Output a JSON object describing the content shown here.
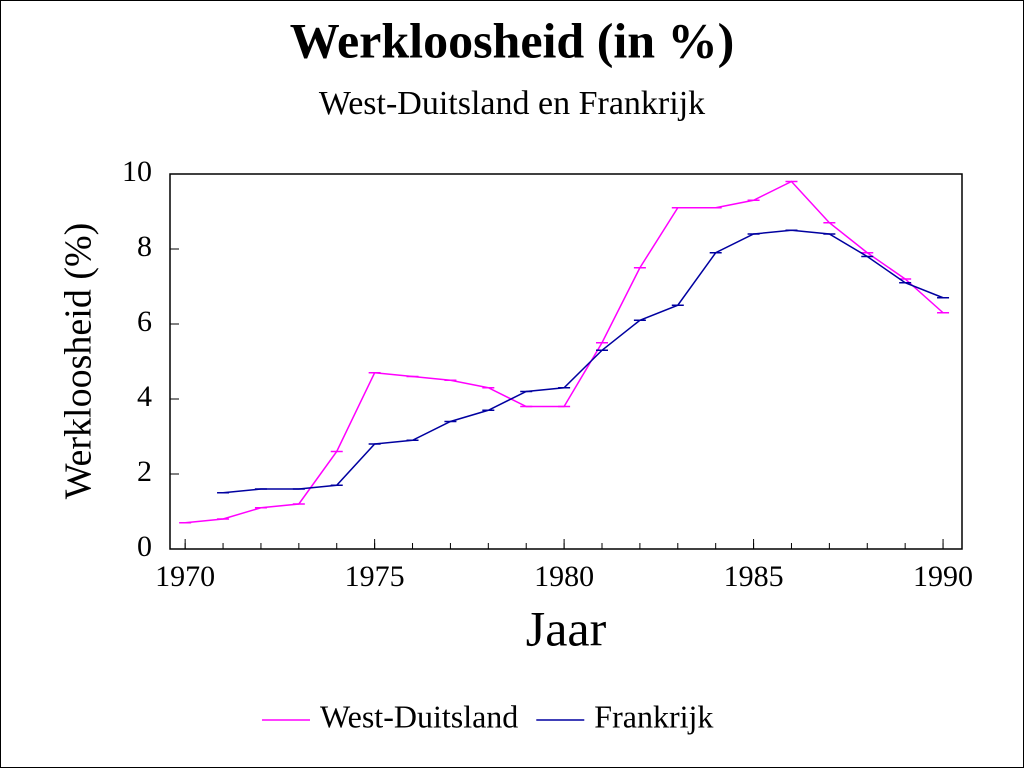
{
  "chart_data": {
    "type": "line",
    "title": "Werkloosheid (in %)",
    "subtitle": "West-Duitsland en Frankrijk",
    "x_label": "Jaar",
    "y_label": "Werkloosheid (%)",
    "x": [
      1970,
      1971,
      1972,
      1973,
      1974,
      1975,
      1976,
      1977,
      1978,
      1979,
      1980,
      1981,
      1982,
      1983,
      1984,
      1985,
      1986,
      1987,
      1988,
      1989,
      1990
    ],
    "series": [
      {
        "name": "West-Duitsland",
        "color": "#ff00ff",
        "values": [
          0.7,
          0.8,
          1.1,
          1.2,
          2.6,
          4.7,
          4.6,
          4.5,
          4.3,
          3.8,
          3.8,
          5.5,
          7.5,
          9.1,
          9.1,
          9.3,
          9.8,
          8.7,
          7.9,
          7.2,
          6.3
        ]
      },
      {
        "name": "Frankrijk",
        "color": "#0000a0",
        "values": [
          null,
          1.5,
          1.6,
          1.6,
          1.7,
          2.8,
          2.9,
          3.4,
          3.7,
          4.2,
          4.3,
          5.3,
          6.1,
          6.5,
          7.9,
          8.4,
          8.5,
          8.4,
          7.8,
          7.1,
          6.7
        ]
      }
    ],
    "xlim": [
      1969.6,
      1990.5
    ],
    "xticks": [
      1970,
      1975,
      1980,
      1985,
      1990
    ],
    "ylim": [
      0,
      10
    ],
    "yticks": [
      0,
      2,
      4,
      6,
      8,
      10
    ],
    "legend": "bottom"
  }
}
